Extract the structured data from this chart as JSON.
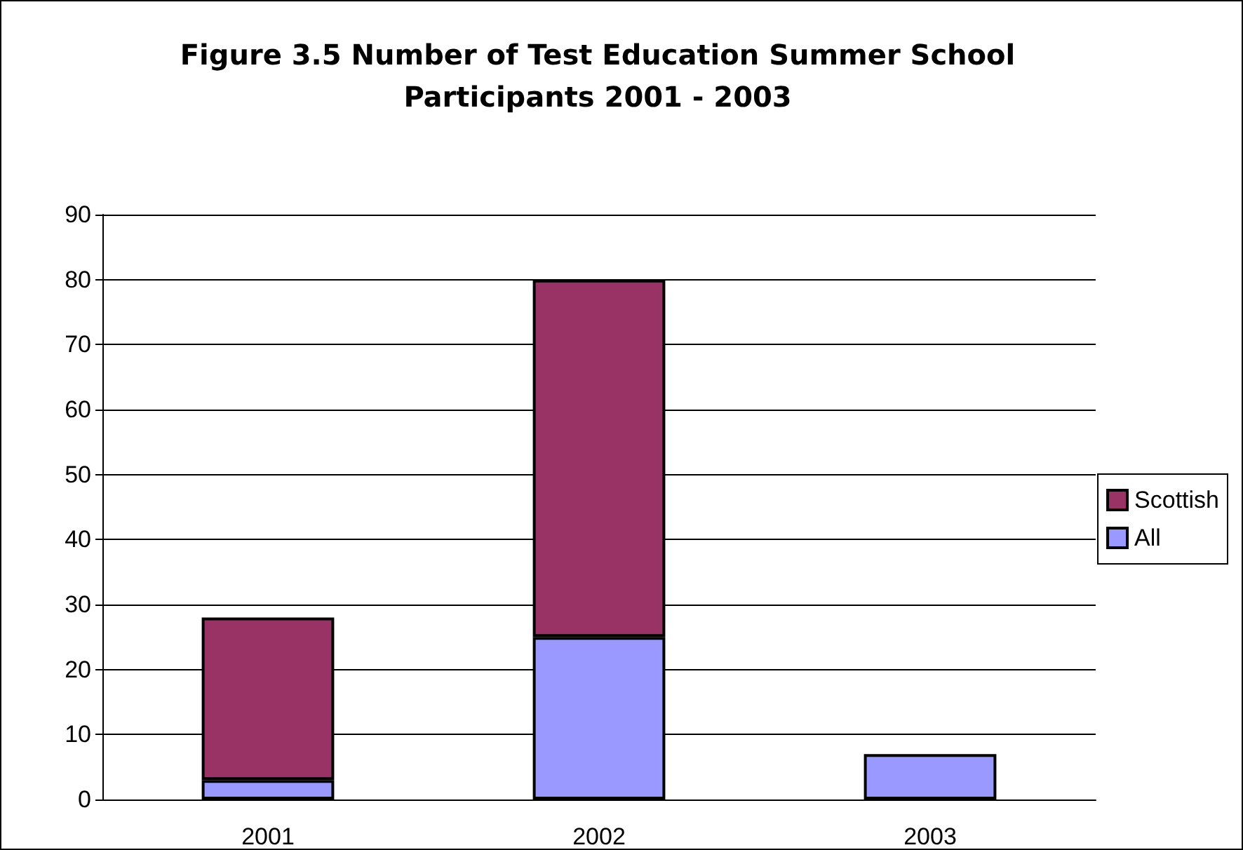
{
  "chart_data": {
    "type": "bar",
    "title": "Figure 3.5 Number of Test Education Summer School\nParticipants 2001 - 2003",
    "categories": [
      "2001",
      "2002",
      "2003"
    ],
    "series": [
      {
        "name": "All",
        "color": "#9999ff",
        "values": [
          3,
          25,
          7
        ]
      },
      {
        "name": "Scottish",
        "color": "#993366",
        "values": [
          25,
          55,
          null
        ]
      }
    ],
    "stacked": true,
    "ylim": [
      0,
      90
    ],
    "yticks": [
      0,
      10,
      20,
      30,
      40,
      50,
      60,
      70,
      80,
      90
    ],
    "grid": "y",
    "legend": "right"
  }
}
